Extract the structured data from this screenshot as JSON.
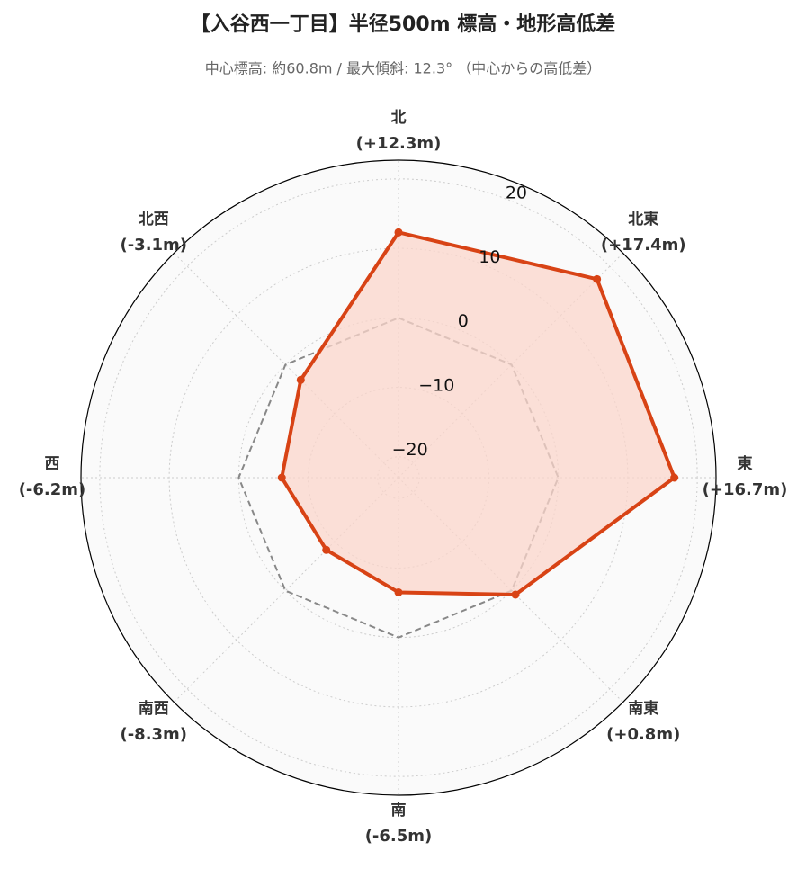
{
  "chart_data": {
    "type": "radar",
    "title": "【入谷西一丁目】半径500m 標高・地形高低差",
    "subtitle": "中心標高: 約60.8m / 最大傾斜: 12.3°  （中心からの高低差）",
    "categories": [
      "北",
      "北東",
      "東",
      "南東",
      "南",
      "南西",
      "西",
      "北西"
    ],
    "values": [
      12.3,
      17.4,
      16.7,
      0.8,
      -6.5,
      -8.3,
      -6.2,
      -3.1
    ],
    "value_labels": [
      "(+12.3m)",
      "(+17.4m)",
      "(+16.7m)",
      "(+0.8m)",
      "(-6.5m)",
      "(-8.3m)",
      "(-6.2m)",
      "(-3.1m)"
    ],
    "color": "#d84315",
    "fill_color": "#fbd5cb",
    "ylim": [
      -23,
      22.7
    ],
    "yticks": [
      {
        "value": -20,
        "label": "−20"
      },
      {
        "value": -10,
        "label": "−10"
      },
      0,
      10,
      20
    ],
    "grid": true,
    "reference_line": {
      "value": 0,
      "color": "#888888"
    }
  }
}
